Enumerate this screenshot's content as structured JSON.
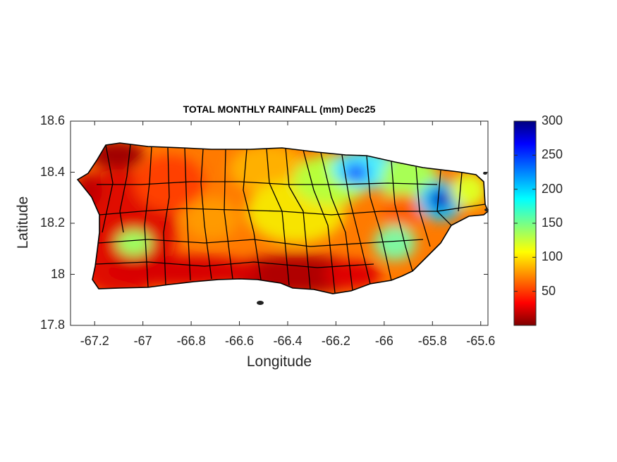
{
  "chart_data": {
    "type": "heatmap",
    "title": "TOTAL MONTHLY RAINFALL (mm) Dec25",
    "xlabel": "Longitude",
    "ylabel": "Latitude",
    "xlim": [
      -67.3,
      -65.57
    ],
    "ylim": [
      17.8,
      18.6
    ],
    "xticks": [
      -67.2,
      -67,
      -66.8,
      -66.6,
      -66.4,
      -66.2,
      -66,
      -65.8,
      -65.6
    ],
    "xtick_labels": [
      "-67.2",
      "-67",
      "-66.8",
      "-66.6",
      "-66.4",
      "-66.2",
      "-66",
      "-65.8",
      "-65.6"
    ],
    "yticks": [
      17.8,
      18,
      18.2,
      18.4,
      18.6
    ],
    "ytick_labels": [
      "17.8",
      "18",
      "18.2",
      "18.4",
      "18.6"
    ],
    "colorbar": {
      "colormap": "jet_reversed",
      "range": [
        0,
        300
      ],
      "ticks": [
        50,
        100,
        150,
        200,
        250,
        300
      ],
      "tick_labels": [
        "50",
        "100",
        "150",
        "200",
        "250",
        "300"
      ]
    },
    "features": [
      {
        "name": "max-rainfall-east",
        "lon": -65.79,
        "lat": 18.29,
        "value": 290
      },
      {
        "name": "high-rainfall-north-central",
        "lon": -66.12,
        "lat": 18.4,
        "value": 240
      },
      {
        "name": "min-rainfall-south-coast",
        "lon": -66.3,
        "lat": 17.97,
        "value": 10
      }
    ]
  }
}
